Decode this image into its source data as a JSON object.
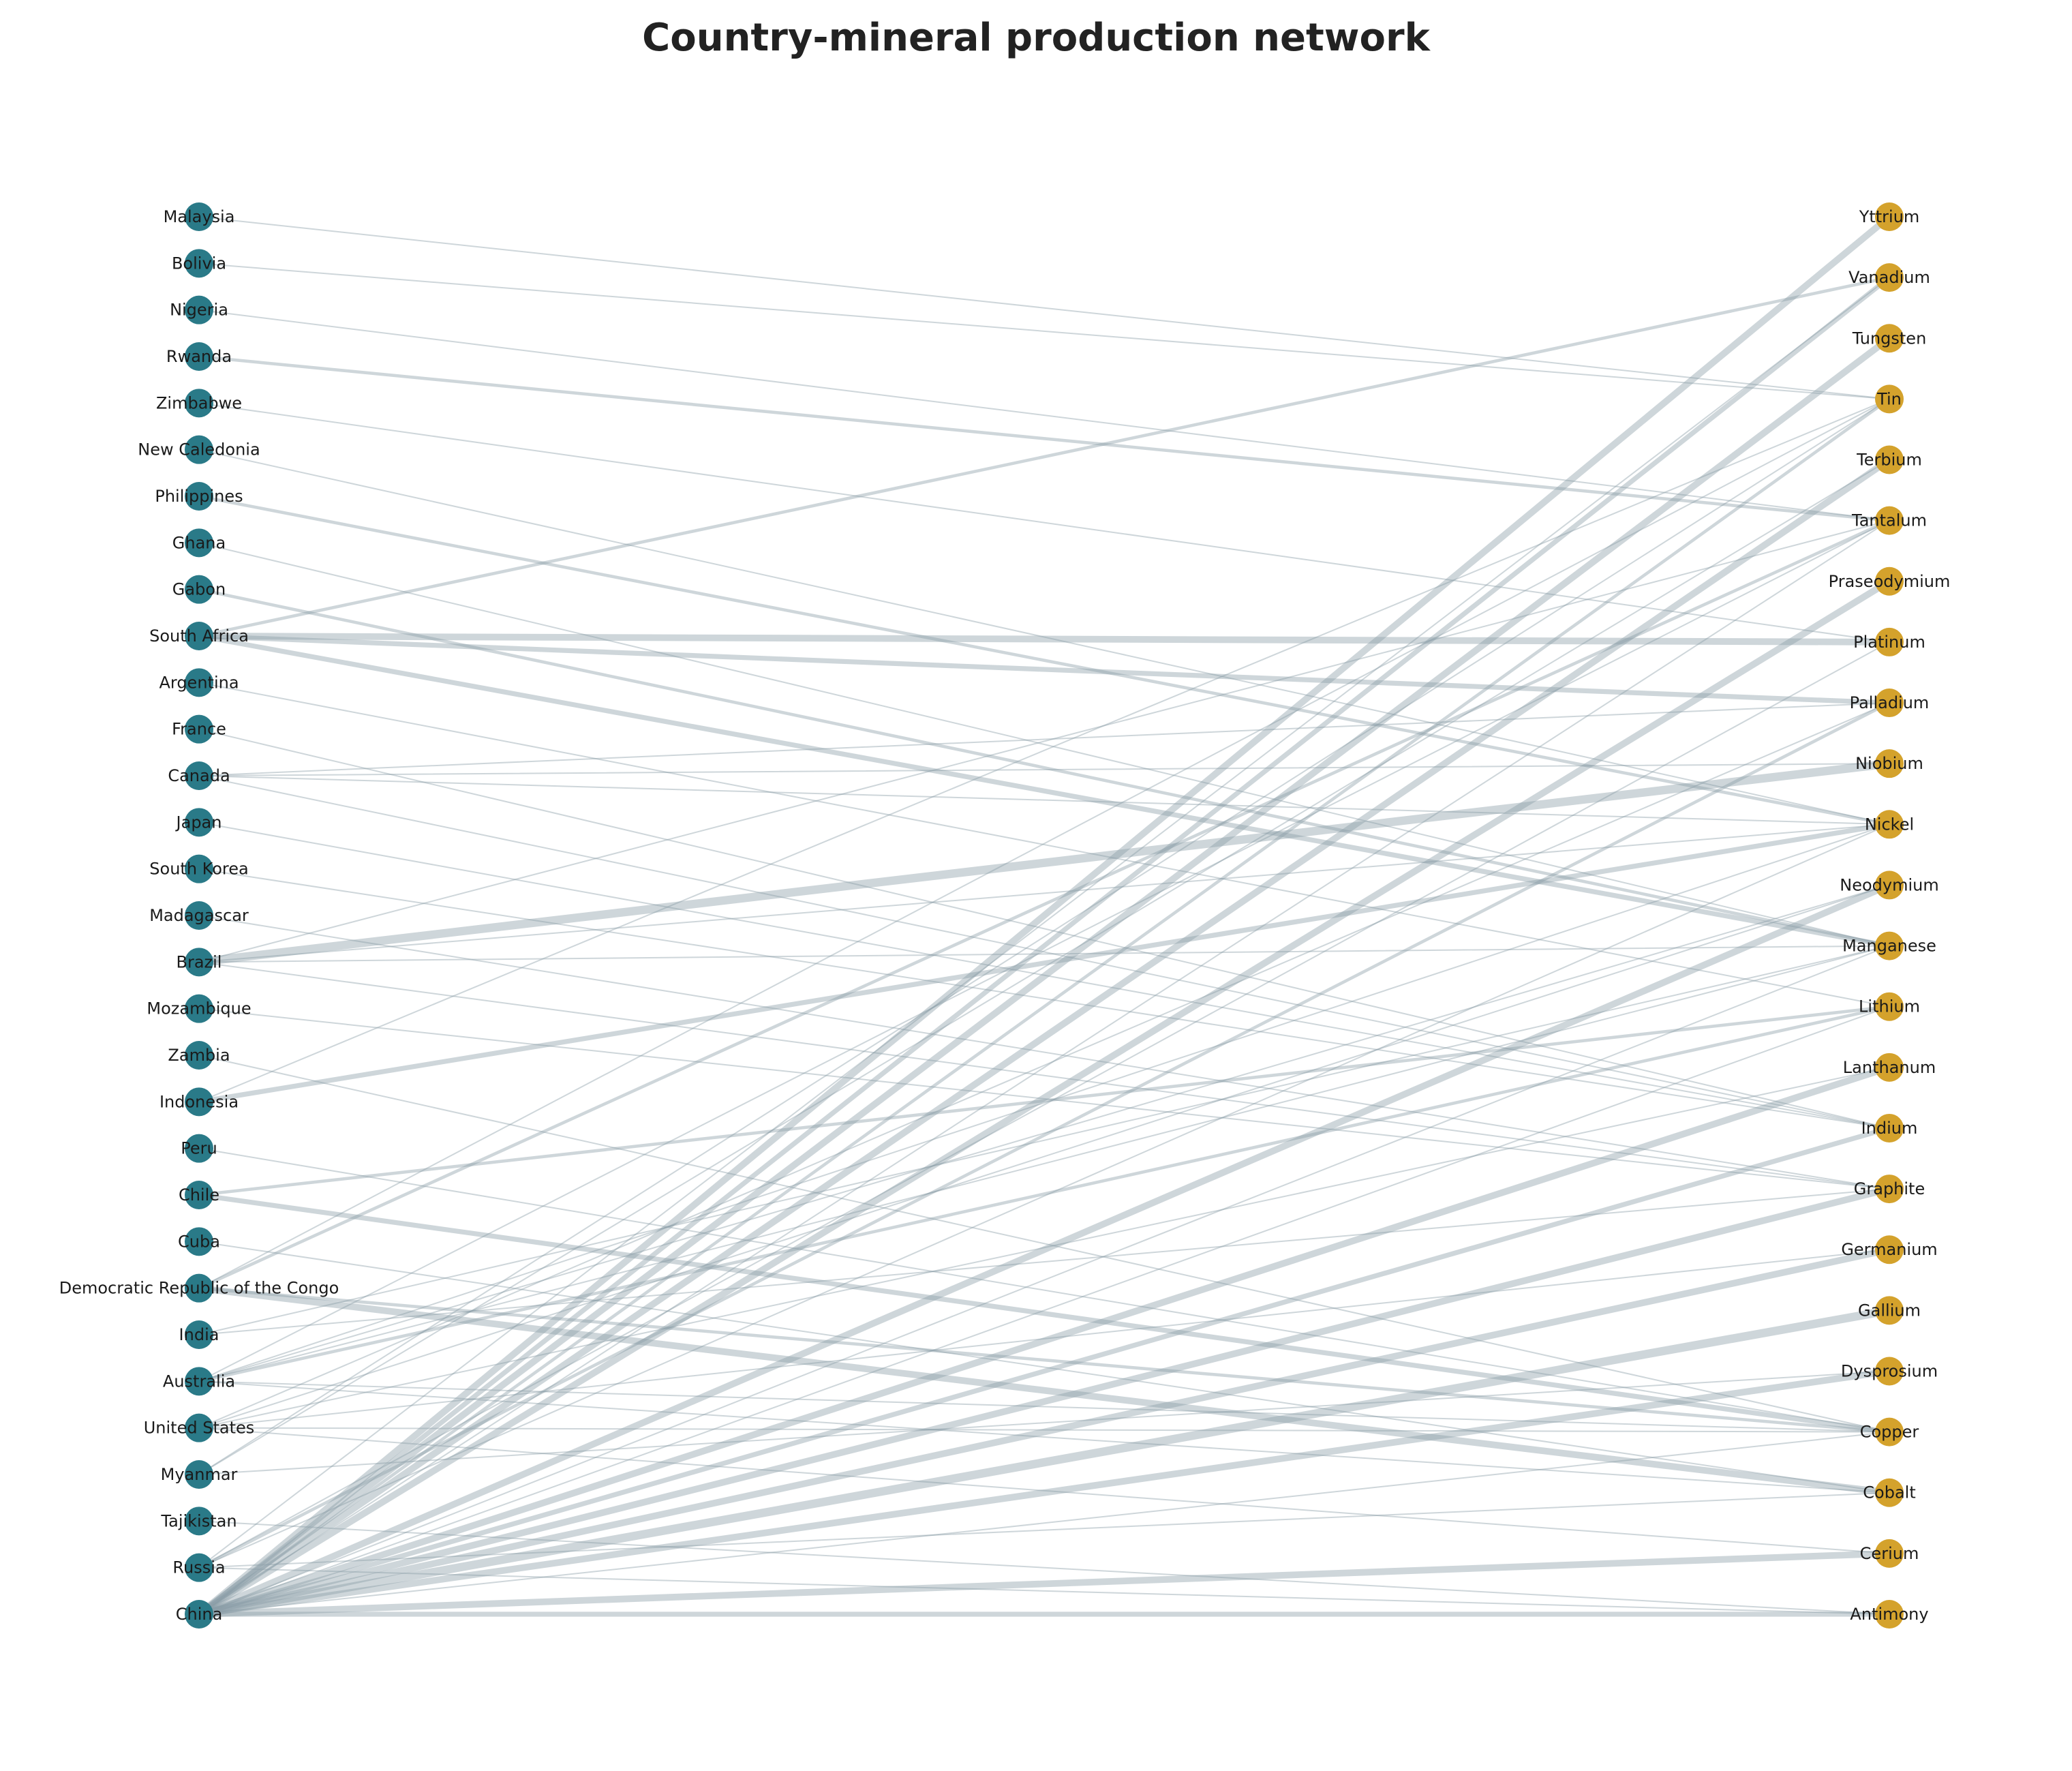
{
  "title": "Country-mineral production network",
  "colors": {
    "country_node": "#2a7a88",
    "mineral_node": "#d4a22c",
    "edge": "#8a9ea8",
    "background": "#ffffff"
  },
  "countries": [
    "Malaysia",
    "Bolivia",
    "Nigeria",
    "Rwanda",
    "Zimbabwe",
    "New Caledonia",
    "Philippines",
    "Ghana",
    "Gabon",
    "South Africa",
    "Argentina",
    "France",
    "Canada",
    "Japan",
    "South Korea",
    "Madagascar",
    "Brazil",
    "Mozambique",
    "Zambia",
    "Indonesia",
    "Peru",
    "Chile",
    "Cuba",
    "Democratic Republic of the Congo",
    "India",
    "Australia",
    "United States",
    "Myanmar",
    "Tajikistan",
    "Russia",
    "China"
  ],
  "minerals": [
    "Yttrium",
    "Vanadium",
    "Tungsten",
    "Tin",
    "Terbium",
    "Tantalum",
    "Praseodymium",
    "Platinum",
    "Palladium",
    "Niobium",
    "Nickel",
    "Neodymium",
    "Manganese",
    "Lithium",
    "Lanthanum",
    "Indium",
    "Graphite",
    "Germanium",
    "Gallium",
    "Dysprosium",
    "Copper",
    "Cobalt",
    "Cerium",
    "Antimony"
  ],
  "edges": [
    {
      "from": "Malaysia",
      "to": "Tin",
      "weight": 1
    },
    {
      "from": "Bolivia",
      "to": "Tin",
      "weight": 1
    },
    {
      "from": "Nigeria",
      "to": "Tantalum",
      "weight": 1
    },
    {
      "from": "Rwanda",
      "to": "Tantalum",
      "weight": 2
    },
    {
      "from": "Zimbabwe",
      "to": "Platinum",
      "weight": 1
    },
    {
      "from": "New Caledonia",
      "to": "Nickel",
      "weight": 1
    },
    {
      "from": "Philippines",
      "to": "Nickel",
      "weight": 2
    },
    {
      "from": "Ghana",
      "to": "Manganese",
      "weight": 1
    },
    {
      "from": "Gabon",
      "to": "Manganese",
      "weight": 2
    },
    {
      "from": "South Africa",
      "to": "Platinum",
      "weight": 4
    },
    {
      "from": "South Africa",
      "to": "Palladium",
      "weight": 3
    },
    {
      "from": "South Africa",
      "to": "Manganese",
      "weight": 3
    },
    {
      "from": "South Africa",
      "to": "Vanadium",
      "weight": 2
    },
    {
      "from": "Argentina",
      "to": "Lithium",
      "weight": 1
    },
    {
      "from": "France",
      "to": "Indium",
      "weight": 1
    },
    {
      "from": "Canada",
      "to": "Palladium",
      "weight": 1
    },
    {
      "from": "Canada",
      "to": "Niobium",
      "weight": 1
    },
    {
      "from": "Canada",
      "to": "Nickel",
      "weight": 1
    },
    {
      "from": "Canada",
      "to": "Indium",
      "weight": 1
    },
    {
      "from": "Japan",
      "to": "Indium",
      "weight": 1
    },
    {
      "from": "South Korea",
      "to": "Indium",
      "weight": 1
    },
    {
      "from": "Madagascar",
      "to": "Graphite",
      "weight": 1
    },
    {
      "from": "Brazil",
      "to": "Niobium",
      "weight": 5
    },
    {
      "from": "Brazil",
      "to": "Tantalum",
      "weight": 1
    },
    {
      "from": "Brazil",
      "to": "Manganese",
      "weight": 1
    },
    {
      "from": "Brazil",
      "to": "Graphite",
      "weight": 1
    },
    {
      "from": "Brazil",
      "to": "Nickel",
      "weight": 1
    },
    {
      "from": "Mozambique",
      "to": "Graphite",
      "weight": 1
    },
    {
      "from": "Zambia",
      "to": "Copper",
      "weight": 1
    },
    {
      "from": "Indonesia",
      "to": "Nickel",
      "weight": 3
    },
    {
      "from": "Indonesia",
      "to": "Tin",
      "weight": 1
    },
    {
      "from": "Peru",
      "to": "Copper",
      "weight": 1
    },
    {
      "from": "Chile",
      "to": "Copper",
      "weight": 3
    },
    {
      "from": "Chile",
      "to": "Lithium",
      "weight": 2
    },
    {
      "from": "Cuba",
      "to": "Cobalt",
      "weight": 1
    },
    {
      "from": "Democratic Republic of the Congo",
      "to": "Cobalt",
      "weight": 4
    },
    {
      "from": "Democratic Republic of the Congo",
      "to": "Copper",
      "weight": 2
    },
    {
      "from": "Democratic Republic of the Congo",
      "to": "Tantalum",
      "weight": 2
    },
    {
      "from": "Democratic Republic of the Congo",
      "to": "Tin",
      "weight": 1
    },
    {
      "from": "India",
      "to": "Graphite",
      "weight": 1
    },
    {
      "from": "India",
      "to": "Manganese",
      "weight": 1
    },
    {
      "from": "Australia",
      "to": "Lithium",
      "weight": 2
    },
    {
      "from": "Australia",
      "to": "Manganese",
      "weight": 1
    },
    {
      "from": "Australia",
      "to": "Cobalt",
      "weight": 1
    },
    {
      "from": "Australia",
      "to": "Nickel",
      "weight": 1
    },
    {
      "from": "Australia",
      "to": "Neodymium",
      "weight": 1
    },
    {
      "from": "Australia",
      "to": "Tantalum",
      "weight": 1
    },
    {
      "from": "Australia",
      "to": "Copper",
      "weight": 1
    },
    {
      "from": "United States",
      "to": "Neodymium",
      "weight": 1
    },
    {
      "from": "United States",
      "to": "Lanthanum",
      "weight": 1
    },
    {
      "from": "United States",
      "to": "Copper",
      "weight": 1
    },
    {
      "from": "United States",
      "to": "Palladium",
      "weight": 1
    },
    {
      "from": "United States",
      "to": "Cerium",
      "weight": 1
    },
    {
      "from": "United States",
      "to": "Germanium",
      "weight": 1
    },
    {
      "from": "Myanmar",
      "to": "Tin",
      "weight": 1
    },
    {
      "from": "Myanmar",
      "to": "Dysprosium",
      "weight": 1
    },
    {
      "from": "Myanmar",
      "to": "Terbium",
      "weight": 1
    },
    {
      "from": "Tajikistan",
      "to": "Antimony",
      "weight": 1
    },
    {
      "from": "Russia",
      "to": "Palladium",
      "weight": 2
    },
    {
      "from": "Russia",
      "to": "Nickel",
      "weight": 1
    },
    {
      "from": "Russia",
      "to": "Platinum",
      "weight": 1
    },
    {
      "from": "Russia",
      "to": "Antimony",
      "weight": 1
    },
    {
      "from": "Russia",
      "to": "Vanadium",
      "weight": 1
    },
    {
      "from": "Russia",
      "to": "Cobalt",
      "weight": 1
    },
    {
      "from": "China",
      "to": "Yttrium",
      "weight": 4
    },
    {
      "from": "China",
      "to": "Vanadium",
      "weight": 3
    },
    {
      "from": "China",
      "to": "Tungsten",
      "weight": 4
    },
    {
      "from": "China",
      "to": "Tin",
      "weight": 2
    },
    {
      "from": "China",
      "to": "Terbium",
      "weight": 4
    },
    {
      "from": "China",
      "to": "Praseodymium",
      "weight": 4
    },
    {
      "from": "China",
      "to": "Neodymium",
      "weight": 4
    },
    {
      "from": "China",
      "to": "Lanthanum",
      "weight": 4
    },
    {
      "from": "China",
      "to": "Indium",
      "weight": 3
    },
    {
      "from": "China",
      "to": "Graphite",
      "weight": 4
    },
    {
      "from": "China",
      "to": "Germanium",
      "weight": 4
    },
    {
      "from": "China",
      "to": "Gallium",
      "weight": 5
    },
    {
      "from": "China",
      "to": "Dysprosium",
      "weight": 4
    },
    {
      "from": "China",
      "to": "Cerium",
      "weight": 4
    },
    {
      "from": "China",
      "to": "Antimony",
      "weight": 3
    },
    {
      "from": "China",
      "to": "Lithium",
      "weight": 1
    },
    {
      "from": "China",
      "to": "Copper",
      "weight": 1
    },
    {
      "from": "China",
      "to": "Manganese",
      "weight": 1
    },
    {
      "from": "China",
      "to": "Tantalum",
      "weight": 1
    }
  ]
}
